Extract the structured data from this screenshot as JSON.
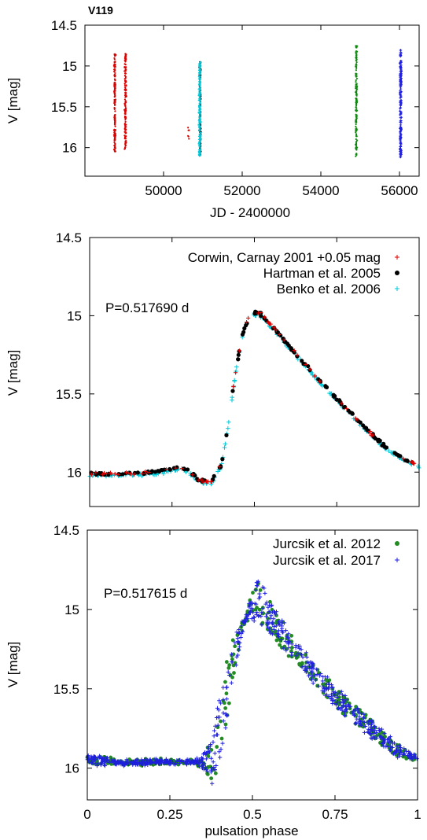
{
  "chart_data": [
    {
      "type": "scatter",
      "title": "V119",
      "xlabel": "JD - 2400000",
      "ylabel": "V [mag]",
      "xlim": [
        48000,
        56500
      ],
      "ylim": [
        16.35,
        14.5
      ],
      "y_inverted": true,
      "grid": false,
      "legend": "none",
      "x_ticks": [
        50000,
        52000,
        54000,
        56000
      ],
      "x_tick_labels": [
        "50000",
        "52000",
        "54000",
        "56000"
      ],
      "y_ticks": [
        14.5,
        15,
        15.5,
        16
      ],
      "y_tick_labels": [
        "14.5",
        "15",
        "15.5",
        "16"
      ],
      "series": [
        {
          "color": "#dd0000",
          "marker": "dot",
          "x_clusters": [
            48760,
            49030,
            50630
          ],
          "y_ranges": [
            [
              14.85,
              16.05
            ],
            [
              14.85,
              16.05
            ],
            [
              15.75,
              15.9
            ]
          ]
        },
        {
          "color": "#000000",
          "marker": "dot",
          "x_clusters": [
            50930
          ],
          "y_ranges": [
            [
              14.95,
              16.1
            ]
          ]
        },
        {
          "color": "#00c8d8",
          "marker": "plus",
          "x_clusters": [
            50920
          ],
          "y_ranges": [
            [
              14.95,
              16.1
            ]
          ]
        },
        {
          "color": "#118811",
          "marker": "dot",
          "x_clusters": [
            54900
          ],
          "y_ranges": [
            [
              14.75,
              16.12
            ]
          ]
        },
        {
          "color": "#1f1fdd",
          "marker": "plus",
          "x_clusters": [
            56030
          ],
          "y_ranges": [
            [
              14.8,
              16.12
            ]
          ]
        }
      ]
    },
    {
      "type": "scatter",
      "xlabel": "",
      "ylabel": "V [mag]",
      "xlim": [
        0,
        1
      ],
      "ylim": [
        16.22,
        14.5
      ],
      "y_inverted": true,
      "grid": false,
      "legend": "top-right",
      "annotation": "P=0.517690 d",
      "x_ticks": [
        0,
        0.25,
        0.5,
        0.75,
        1
      ],
      "y_ticks": [
        14.5,
        15,
        15.5,
        16
      ],
      "y_tick_labels": [
        "14.5",
        "15",
        "15.5",
        "16"
      ],
      "phase_curve": [
        [
          0.0,
          16.01
        ],
        [
          0.1,
          16.01
        ],
        [
          0.2,
          16.0
        ],
        [
          0.27,
          15.97
        ],
        [
          0.3,
          15.99
        ],
        [
          0.33,
          16.05
        ],
        [
          0.37,
          16.06
        ],
        [
          0.4,
          15.95
        ],
        [
          0.42,
          15.7
        ],
        [
          0.44,
          15.4
        ],
        [
          0.46,
          15.15
        ],
        [
          0.48,
          15.02
        ],
        [
          0.5,
          14.98
        ],
        [
          0.52,
          14.99
        ],
        [
          0.55,
          15.06
        ],
        [
          0.6,
          15.18
        ],
        [
          0.65,
          15.3
        ],
        [
          0.7,
          15.42
        ],
        [
          0.75,
          15.53
        ],
        [
          0.8,
          15.64
        ],
        [
          0.85,
          15.75
        ],
        [
          0.9,
          15.84
        ],
        [
          0.95,
          15.91
        ],
        [
          1.0,
          15.96
        ]
      ],
      "series": [
        {
          "name": "Corwin, Carnay 2001 +0.05 mag",
          "color": "#dd0000",
          "marker": "plus"
        },
        {
          "name": "Hartman et al. 2005",
          "color": "#000000",
          "marker": "dot"
        },
        {
          "name": "Benko et al. 2006",
          "color": "#00c8d8",
          "marker": "plus"
        }
      ]
    },
    {
      "type": "scatter",
      "xlabel": "pulsation phase",
      "ylabel": "V [mag]",
      "xlim": [
        0,
        1
      ],
      "ylim": [
        16.2,
        14.5
      ],
      "y_inverted": true,
      "grid": false,
      "legend": "top-right",
      "annotation": "P=0.517615 d",
      "x_ticks": [
        0,
        0.25,
        0.5,
        0.75,
        1
      ],
      "x_tick_labels": [
        "0",
        "0.25",
        "0.5",
        "0.75",
        "1"
      ],
      "y_ticks": [
        14.5,
        15,
        15.5,
        16
      ],
      "y_tick_labels": [
        "14.5",
        "15",
        "15.5",
        "16"
      ],
      "phase_curve_max": [
        [
          0.0,
          15.92
        ],
        [
          0.1,
          15.95
        ],
        [
          0.2,
          15.95
        ],
        [
          0.3,
          15.95
        ],
        [
          0.35,
          16.0
        ],
        [
          0.38,
          16.1
        ],
        [
          0.4,
          16.0
        ],
        [
          0.43,
          15.6
        ],
        [
          0.46,
          15.25
        ],
        [
          0.49,
          14.95
        ],
        [
          0.51,
          14.82
        ],
        [
          0.53,
          14.85
        ],
        [
          0.57,
          15.0
        ],
        [
          0.62,
          15.15
        ],
        [
          0.68,
          15.32
        ],
        [
          0.75,
          15.48
        ],
        [
          0.82,
          15.62
        ],
        [
          0.9,
          15.78
        ],
        [
          0.96,
          15.88
        ],
        [
          1.0,
          15.92
        ]
      ],
      "phase_curve_min": [
        [
          0.0,
          15.97
        ],
        [
          0.1,
          15.98
        ],
        [
          0.2,
          15.97
        ],
        [
          0.3,
          15.97
        ],
        [
          0.35,
          15.93
        ],
        [
          0.38,
          15.8
        ],
        [
          0.4,
          15.55
        ],
        [
          0.43,
          15.25
        ],
        [
          0.46,
          15.1
        ],
        [
          0.49,
          15.05
        ],
        [
          0.53,
          15.1
        ],
        [
          0.58,
          15.22
        ],
        [
          0.64,
          15.36
        ],
        [
          0.7,
          15.5
        ],
        [
          0.76,
          15.63
        ],
        [
          0.82,
          15.74
        ],
        [
          0.88,
          15.84
        ],
        [
          0.94,
          15.92
        ],
        [
          1.0,
          15.96
        ]
      ],
      "series": [
        {
          "name": "Jurcsik et al. 2012",
          "color": "#228b22",
          "marker": "dot"
        },
        {
          "name": "Jurcsik et al. 2017",
          "color": "#1f1fdd",
          "marker": "plus"
        }
      ]
    }
  ]
}
